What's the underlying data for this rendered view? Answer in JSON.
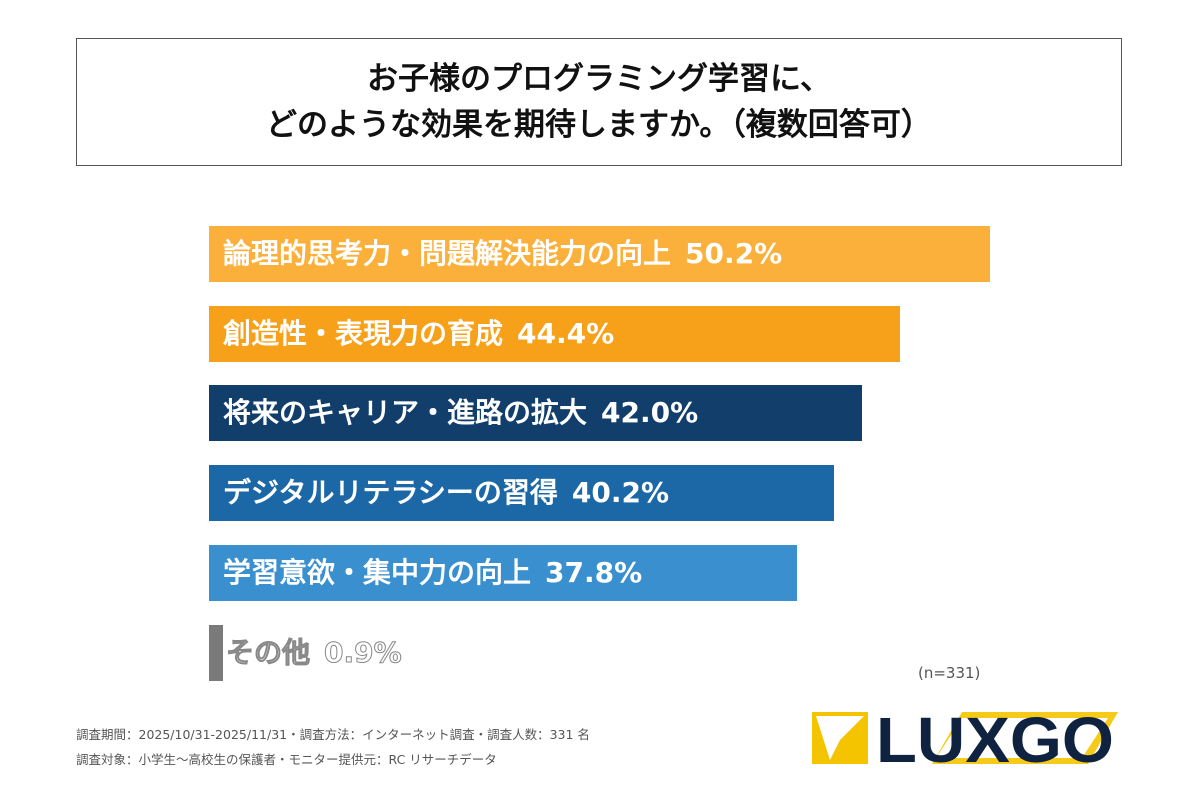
{
  "title": {
    "line1": "お子様のプログラミング学習に、",
    "line2": "どのような効果を期待しますか。（複数回答可）"
  },
  "chart_data": {
    "type": "bar",
    "orientation": "horizontal",
    "categories": [
      "論理的思考力・問題解決能力の向上",
      "創造性・表現力の育成",
      "将来のキャリア・進路の拡大",
      "デジタルリテラシーの習得",
      "学習意欲・集中力の向上",
      "その他"
    ],
    "values": [
      50.2,
      44.4,
      42.0,
      40.2,
      37.8,
      0.9
    ],
    "value_labels": [
      "50.2%",
      "44.4%",
      "42.0%",
      "40.2%",
      "37.8%",
      "0.9%"
    ],
    "colors": [
      "#fbb03b",
      "#f7a11a",
      "#123e6b",
      "#1c68a6",
      "#3a8fcf",
      "#7a7a7a"
    ],
    "xlim": [
      0,
      50.2
    ],
    "grid": false
  },
  "note": "(n=331)",
  "footer": {
    "line1": "調査期間：2025/10/31-2025/11/31・調査方法：インターネット調査・調査人数：331 名",
    "line2": "調査対象：小学生～高校生の保護者・モニター提供元：RC リサーチデータ"
  },
  "logo": {
    "text": "LUXGO",
    "colors": {
      "navy": "#0f2340",
      "yellow": "#f5c400"
    }
  }
}
